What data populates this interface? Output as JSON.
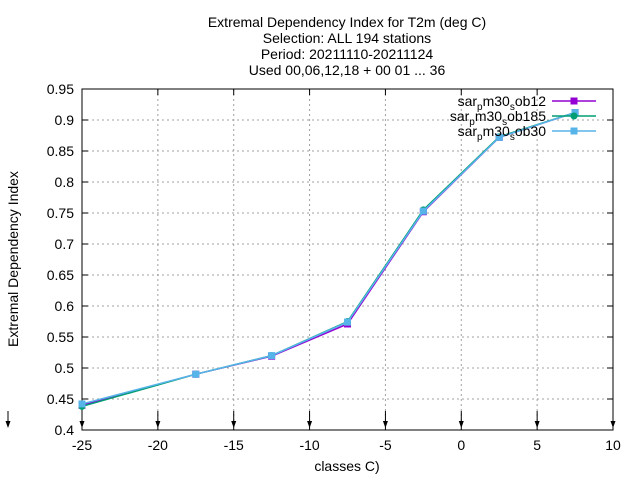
{
  "chart_data": {
    "type": "line",
    "title_lines": [
      "Extremal Dependency Index  for T2m (deg C)",
      "Selection: ALL    194 stations",
      "Period: 20211110-20211124",
      "Used 00,06,12,18 + 00 01 ... 36"
    ],
    "xlabel": "classes C)",
    "ylabel": "Extremal Dependency Index",
    "xlim": [
      -25,
      10
    ],
    "ylim": [
      0.4,
      0.95
    ],
    "xticks": [
      -25,
      -20,
      -15,
      -10,
      -5,
      0,
      5,
      10
    ],
    "yticks": [
      0.4,
      0.45,
      0.5,
      0.55,
      0.6,
      0.65,
      0.7,
      0.75,
      0.8,
      0.85,
      0.9,
      0.95
    ],
    "xtick_labels": [
      "-25",
      "-20",
      "-15",
      "-10",
      "-5",
      "0",
      "5",
      "10"
    ],
    "ytick_labels": [
      "0.4",
      "0.45",
      "0.5",
      "0.55",
      "0.6",
      "0.65",
      "0.7",
      "0.75",
      "0.8",
      "0.85",
      "0.9",
      "0.95"
    ],
    "grid": true,
    "legend_position": "top-right",
    "series": [
      {
        "name": "sar_p m30_s ob12",
        "color": "#9400d3",
        "marker": "square",
        "x": [
          -25,
          -17.5,
          -12.5,
          -7.5,
          -2.5,
          2.5,
          7.5
        ],
        "y": [
          0.44,
          0.49,
          0.519,
          0.571,
          0.752,
          0.872,
          0.912
        ]
      },
      {
        "name": "sar_p m30_s ob185",
        "color": "#009e73",
        "marker": "circle",
        "x": [
          -25,
          -17.5,
          -12.5,
          -7.5,
          -2.5,
          2.5,
          7.5
        ],
        "y": [
          0.438,
          0.49,
          0.52,
          0.575,
          0.755,
          0.873,
          0.912
        ]
      },
      {
        "name": "sar_p m30_s ob30",
        "color": "#56b4e9",
        "marker": "square",
        "x": [
          -25,
          -17.5,
          -12.5,
          -7.5,
          -2.5,
          2.5,
          7.5
        ],
        "y": [
          0.442,
          0.49,
          0.52,
          0.574,
          0.753,
          0.872,
          0.912
        ]
      }
    ],
    "legend": [
      {
        "base": "sar",
        "sub1": "p",
        "mid": "m30",
        "sub2": "s",
        "tail": "ob12"
      },
      {
        "base": "sar",
        "sub1": "p",
        "mid": "m30",
        "sub2": "s",
        "tail": "ob185"
      },
      {
        "base": "sar",
        "sub1": "p",
        "mid": "m30",
        "sub2": "s",
        "tail": "ob30"
      }
    ],
    "bottom_arrows_x": [
      -25,
      -20,
      -15,
      -10,
      -5,
      0,
      5,
      10
    ]
  }
}
